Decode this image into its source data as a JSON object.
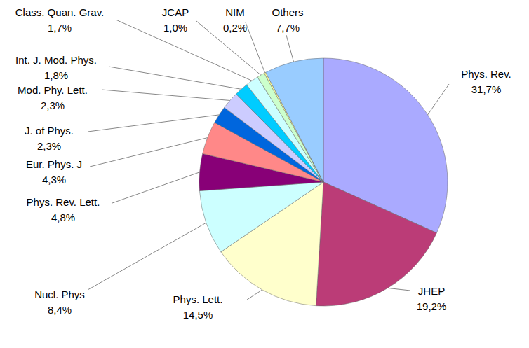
{
  "chart_data": {
    "type": "pie",
    "categories": [
      "Phys. Rev.",
      "JHEP",
      "Phys. Lett.",
      "Nucl. Phys",
      "Phys. Rev. Lett.",
      "Eur. Phys. J",
      "J. of Phys.",
      "Mod. Phy. Lett.",
      "Int. J. Mod. Phys.",
      "Class. Quan. Grav.",
      "JCAP",
      "NIM",
      "Others"
    ],
    "values": [
      31.7,
      19.2,
      14.5,
      8.4,
      4.8,
      4.3,
      2.3,
      2.3,
      1.8,
      1.7,
      1.0,
      0.2,
      7.7
    ],
    "value_labels": [
      "31,7%",
      "19,2%",
      "14,5%",
      "8,4%",
      "4,8%",
      "4,3%",
      "2,3%",
      "2,3%",
      "1,8%",
      "1,7%",
      "1,0%",
      "0,2%",
      "7,7%"
    ],
    "colors": [
      "#aaaaff",
      "#bb3c77",
      "#ffffcc",
      "#ccffff",
      "#880077",
      "#ff8888",
      "#0066dd",
      "#ccccff",
      "#00ccff",
      "#ccffff",
      "#ccffcc",
      "#ffff99",
      "#99ccff"
    ],
    "data_labels": true
  }
}
